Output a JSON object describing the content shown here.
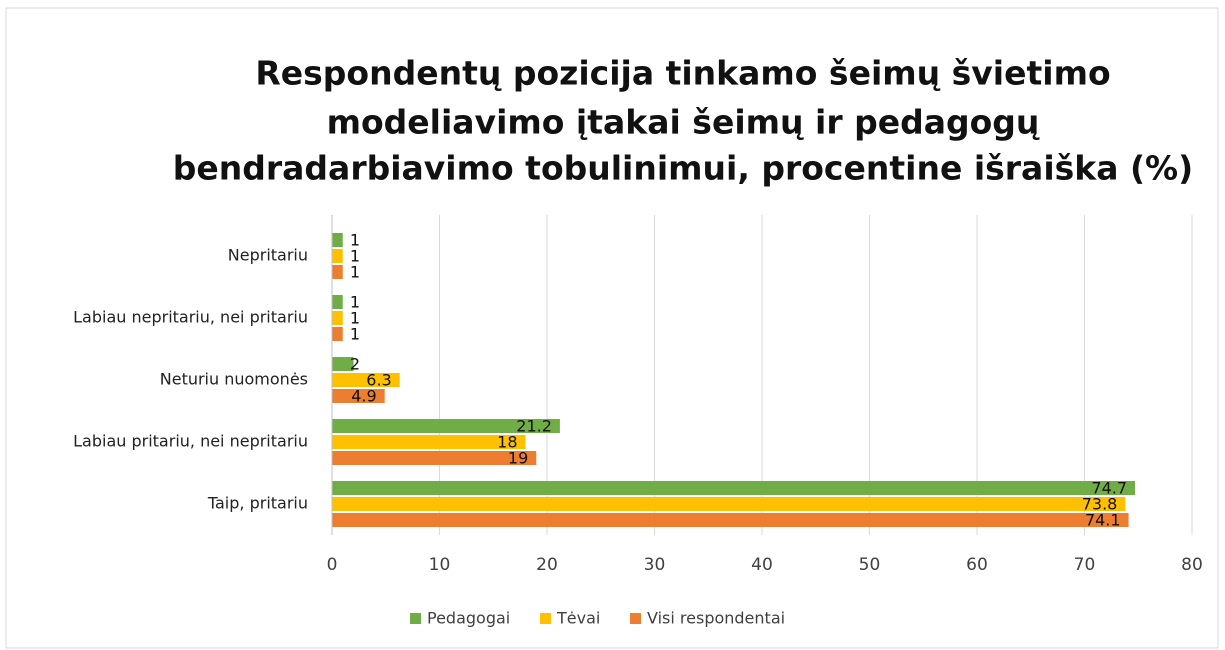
{
  "chart_data": {
    "type": "barh",
    "title": [
      "Respondentų pozicija tinkamo šeimų švietimo",
      "modeliavimo įtakai šeimų ir pedagogų",
      "bendradarbiavimo tobulinimui, procentine išraiška (%)"
    ],
    "categories": [
      "Nepritariu",
      "Labiau nepritariu, nei pritariu",
      "Neturiu nuomonės",
      "Labiau pritariu, nei nepritariu",
      "Taip, pritariu"
    ],
    "series": [
      {
        "name": "Pedagogai",
        "color": "#70ad47",
        "values": [
          1,
          1,
          2,
          21.2,
          74.7
        ]
      },
      {
        "name": "Tėvai",
        "color": "#ffc000",
        "values": [
          1,
          1,
          6.3,
          18,
          73.8
        ]
      },
      {
        "name": "Visi respondentai",
        "color": "#ed7d31",
        "values": [
          1,
          1,
          4.9,
          19,
          74.1
        ]
      }
    ],
    "xlim": [
      0,
      80
    ],
    "xticks": [
      0,
      10,
      20,
      30,
      40,
      50,
      60,
      70,
      80
    ],
    "grid": true,
    "legend": "bottom"
  }
}
